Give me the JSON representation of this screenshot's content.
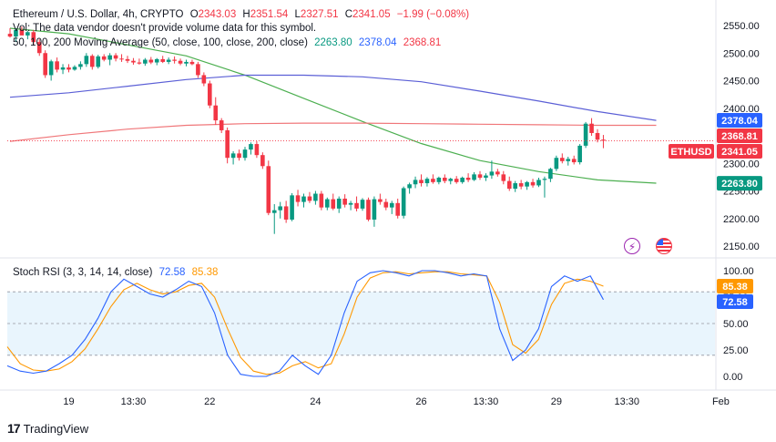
{
  "header": {
    "symbol_title": "Ethereum / U.S. Dollar, 4h, CRYPTO",
    "ohlc": [
      {
        "prefix": "O",
        "value": "2343.03"
      },
      {
        "prefix": "H",
        "value": "2351.54"
      },
      {
        "prefix": "L",
        "value": "2327.51"
      },
      {
        "prefix": "C",
        "value": "2341.05"
      }
    ],
    "change": "−1.99 (−0.08%)",
    "volume_note": "Vol: The data vendor doesn't provide volume data for this symbol.",
    "ma_label": "50, 100, 200 Moving Average (50, close, 100, close, 200, close)",
    "ma_values": [
      "2263.80",
      "2378.04",
      "2368.81"
    ]
  },
  "stoch_label": "Stoch RSI (3, 3, 14, 14, close)",
  "stoch_values": [
    "72.58",
    "85.38"
  ],
  "price_badges": [
    {
      "text": "2378.04",
      "value": 2378.04,
      "color": "#2962ff"
    },
    {
      "text": "2368.81",
      "value": 2368.81,
      "color": "#f23645"
    },
    {
      "text": "2341.05",
      "value": 2341.05,
      "color": "#f23645"
    },
    {
      "text": "2263.80",
      "value": 2263.8,
      "color": "#089981"
    }
  ],
  "symbol_badge": "ETHUSD",
  "stoch_badges": [
    {
      "text": "85.38",
      "value": 85.38,
      "color": "#ff9800"
    },
    {
      "text": "72.58",
      "value": 72.58,
      "color": "#2962ff"
    }
  ],
  "brand": "TradingView",
  "colors": {
    "up": "#089981",
    "down": "#f23645",
    "ma50": "#4caf50",
    "ma100": "#5b5fd6",
    "ma200": "#f0777a",
    "k_line": "#2962ff",
    "d_line": "#ff9800",
    "stoch_band": "#e3f2fd"
  },
  "chart_data": [
    {
      "type": "candlestick",
      "title": "Ethereum / U.S. Dollar, 4h, CRYPTO",
      "y_ticks": [
        2550,
        2500,
        2450,
        2400,
        2350,
        2300,
        2250,
        2200,
        2150
      ],
      "y_tick_labels": [
        "2550.00",
        "2500.00",
        "2450.00",
        "2400.00",
        "2350.00",
        "2300.00",
        "2250.00",
        "2200.00",
        "2150.00"
      ],
      "x_tick_labels": [
        "19",
        "13:30",
        "22",
        "24",
        "26",
        "13:30",
        "29",
        "13:30",
        "Feb"
      ],
      "x_tick_index": [
        10,
        21,
        34,
        52,
        70,
        81,
        93,
        105,
        121
      ],
      "ylim": [
        2150,
        2550
      ],
      "candles": [
        {
          "o": 2535,
          "h": 2545,
          "l": 2528,
          "c": 2530
        },
        {
          "o": 2530,
          "h": 2545,
          "l": 2520,
          "c": 2542
        },
        {
          "o": 2542,
          "h": 2548,
          "l": 2535,
          "c": 2532
        },
        {
          "o": 2532,
          "h": 2540,
          "l": 2525,
          "c": 2538
        },
        {
          "o": 2538,
          "h": 2542,
          "l": 2515,
          "c": 2520
        },
        {
          "o": 2520,
          "h": 2525,
          "l": 2495,
          "c": 2500
        },
        {
          "o": 2500,
          "h": 2505,
          "l": 2455,
          "c": 2460
        },
        {
          "o": 2460,
          "h": 2488,
          "l": 2450,
          "c": 2485
        },
        {
          "o": 2485,
          "h": 2492,
          "l": 2465,
          "c": 2470
        },
        {
          "o": 2470,
          "h": 2480,
          "l": 2462,
          "c": 2474
        },
        {
          "o": 2474,
          "h": 2480,
          "l": 2465,
          "c": 2470
        },
        {
          "o": 2470,
          "h": 2478,
          "l": 2468,
          "c": 2475
        },
        {
          "o": 2475,
          "h": 2485,
          "l": 2470,
          "c": 2480
        },
        {
          "o": 2480,
          "h": 2500,
          "l": 2475,
          "c": 2495
        },
        {
          "o": 2495,
          "h": 2498,
          "l": 2470,
          "c": 2475
        },
        {
          "o": 2475,
          "h": 2497,
          "l": 2472,
          "c": 2494
        },
        {
          "o": 2494,
          "h": 2498,
          "l": 2485,
          "c": 2488
        },
        {
          "o": 2488,
          "h": 2500,
          "l": 2478,
          "c": 2496
        },
        {
          "o": 2496,
          "h": 2500,
          "l": 2485,
          "c": 2490
        },
        {
          "o": 2490,
          "h": 2498,
          "l": 2484,
          "c": 2489
        },
        {
          "o": 2489,
          "h": 2495,
          "l": 2482,
          "c": 2486
        },
        {
          "o": 2486,
          "h": 2491,
          "l": 2479,
          "c": 2483
        },
        {
          "o": 2483,
          "h": 2490,
          "l": 2479,
          "c": 2481
        },
        {
          "o": 2481,
          "h": 2491,
          "l": 2477,
          "c": 2488
        },
        {
          "o": 2488,
          "h": 2493,
          "l": 2480,
          "c": 2483
        },
        {
          "o": 2483,
          "h": 2491,
          "l": 2478,
          "c": 2489
        },
        {
          "o": 2489,
          "h": 2495,
          "l": 2482,
          "c": 2484
        },
        {
          "o": 2484,
          "h": 2492,
          "l": 2480,
          "c": 2488
        },
        {
          "o": 2488,
          "h": 2494,
          "l": 2481,
          "c": 2486
        },
        {
          "o": 2486,
          "h": 2490,
          "l": 2478,
          "c": 2481
        },
        {
          "o": 2481,
          "h": 2488,
          "l": 2476,
          "c": 2484
        },
        {
          "o": 2484,
          "h": 2488,
          "l": 2478,
          "c": 2480
        },
        {
          "o": 2480,
          "h": 2484,
          "l": 2455,
          "c": 2460
        },
        {
          "o": 2460,
          "h": 2465,
          "l": 2440,
          "c": 2445
        },
        {
          "o": 2445,
          "h": 2450,
          "l": 2400,
          "c": 2405
        },
        {
          "o": 2405,
          "h": 2420,
          "l": 2370,
          "c": 2378
        },
        {
          "o": 2378,
          "h": 2382,
          "l": 2355,
          "c": 2360
        },
        {
          "o": 2360,
          "h": 2365,
          "l": 2300,
          "c": 2310
        },
        {
          "o": 2310,
          "h": 2322,
          "l": 2298,
          "c": 2318
        },
        {
          "o": 2318,
          "h": 2325,
          "l": 2305,
          "c": 2310
        },
        {
          "o": 2310,
          "h": 2330,
          "l": 2305,
          "c": 2325
        },
        {
          "o": 2325,
          "h": 2338,
          "l": 2316,
          "c": 2335
        },
        {
          "o": 2335,
          "h": 2340,
          "l": 2310,
          "c": 2315
        },
        {
          "o": 2315,
          "h": 2320,
          "l": 2290,
          "c": 2295
        },
        {
          "o": 2295,
          "h": 2305,
          "l": 2206,
          "c": 2210
        },
        {
          "o": 2210,
          "h": 2226,
          "l": 2172,
          "c": 2215
        },
        {
          "o": 2215,
          "h": 2230,
          "l": 2200,
          "c": 2222
        },
        {
          "o": 2222,
          "h": 2232,
          "l": 2192,
          "c": 2198
        },
        {
          "o": 2198,
          "h": 2246,
          "l": 2195,
          "c": 2242
        },
        {
          "o": 2242,
          "h": 2252,
          "l": 2222,
          "c": 2230
        },
        {
          "o": 2230,
          "h": 2245,
          "l": 2220,
          "c": 2240
        },
        {
          "o": 2240,
          "h": 2248,
          "l": 2228,
          "c": 2232
        },
        {
          "o": 2232,
          "h": 2250,
          "l": 2225,
          "c": 2245
        },
        {
          "o": 2245,
          "h": 2250,
          "l": 2215,
          "c": 2220
        },
        {
          "o": 2220,
          "h": 2238,
          "l": 2215,
          "c": 2235
        },
        {
          "o": 2235,
          "h": 2245,
          "l": 2215,
          "c": 2218
        },
        {
          "o": 2218,
          "h": 2240,
          "l": 2210,
          "c": 2236
        },
        {
          "o": 2236,
          "h": 2244,
          "l": 2220,
          "c": 2225
        },
        {
          "o": 2225,
          "h": 2232,
          "l": 2215,
          "c": 2228
        },
        {
          "o": 2228,
          "h": 2240,
          "l": 2213,
          "c": 2218
        },
        {
          "o": 2218,
          "h": 2237,
          "l": 2214,
          "c": 2234
        },
        {
          "o": 2234,
          "h": 2238,
          "l": 2195,
          "c": 2198
        },
        {
          "o": 2198,
          "h": 2240,
          "l": 2185,
          "c": 2235
        },
        {
          "o": 2235,
          "h": 2245,
          "l": 2225,
          "c": 2230
        },
        {
          "o": 2230,
          "h": 2236,
          "l": 2215,
          "c": 2220
        },
        {
          "o": 2220,
          "h": 2232,
          "l": 2208,
          "c": 2228
        },
        {
          "o": 2228,
          "h": 2236,
          "l": 2200,
          "c": 2205
        },
        {
          "o": 2205,
          "h": 2258,
          "l": 2200,
          "c": 2255
        },
        {
          "o": 2255,
          "h": 2265,
          "l": 2245,
          "c": 2262
        },
        {
          "o": 2262,
          "h": 2276,
          "l": 2255,
          "c": 2270
        },
        {
          "o": 2270,
          "h": 2280,
          "l": 2258,
          "c": 2264
        },
        {
          "o": 2264,
          "h": 2275,
          "l": 2258,
          "c": 2272
        },
        {
          "o": 2272,
          "h": 2280,
          "l": 2263,
          "c": 2266
        },
        {
          "o": 2266,
          "h": 2276,
          "l": 2262,
          "c": 2274
        },
        {
          "o": 2274,
          "h": 2280,
          "l": 2264,
          "c": 2268
        },
        {
          "o": 2268,
          "h": 2274,
          "l": 2262,
          "c": 2272
        },
        {
          "o": 2272,
          "h": 2277,
          "l": 2263,
          "c": 2266
        },
        {
          "o": 2266,
          "h": 2276,
          "l": 2263,
          "c": 2274
        },
        {
          "o": 2274,
          "h": 2282,
          "l": 2266,
          "c": 2270
        },
        {
          "o": 2270,
          "h": 2284,
          "l": 2268,
          "c": 2280
        },
        {
          "o": 2280,
          "h": 2286,
          "l": 2270,
          "c": 2274
        },
        {
          "o": 2274,
          "h": 2282,
          "l": 2268,
          "c": 2278
        },
        {
          "o": 2278,
          "h": 2305,
          "l": 2272,
          "c": 2285
        },
        {
          "o": 2285,
          "h": 2290,
          "l": 2276,
          "c": 2280
        },
        {
          "o": 2280,
          "h": 2286,
          "l": 2262,
          "c": 2268
        },
        {
          "o": 2268,
          "h": 2276,
          "l": 2250,
          "c": 2254
        },
        {
          "o": 2254,
          "h": 2268,
          "l": 2248,
          "c": 2264
        },
        {
          "o": 2264,
          "h": 2270,
          "l": 2253,
          "c": 2258
        },
        {
          "o": 2258,
          "h": 2268,
          "l": 2252,
          "c": 2266
        },
        {
          "o": 2266,
          "h": 2272,
          "l": 2256,
          "c": 2260
        },
        {
          "o": 2260,
          "h": 2274,
          "l": 2257,
          "c": 2270
        },
        {
          "o": 2270,
          "h": 2276,
          "l": 2238,
          "c": 2272
        },
        {
          "o": 2272,
          "h": 2292,
          "l": 2266,
          "c": 2290
        },
        {
          "o": 2290,
          "h": 2314,
          "l": 2286,
          "c": 2310
        },
        {
          "o": 2310,
          "h": 2318,
          "l": 2300,
          "c": 2304
        },
        {
          "o": 2304,
          "h": 2312,
          "l": 2296,
          "c": 2308
        },
        {
          "o": 2308,
          "h": 2314,
          "l": 2298,
          "c": 2302
        },
        {
          "o": 2302,
          "h": 2335,
          "l": 2298,
          "c": 2332
        },
        {
          "o": 2332,
          "h": 2375,
          "l": 2328,
          "c": 2372
        },
        {
          "o": 2372,
          "h": 2382,
          "l": 2350,
          "c": 2355
        },
        {
          "o": 2355,
          "h": 2362,
          "l": 2338,
          "c": 2343
        },
        {
          "o": 2343.03,
          "h": 2351.54,
          "l": 2327.51,
          "c": 2341.05
        }
      ],
      "moving_averages": [
        {
          "name": "50",
          "color": "#4caf50",
          "x_index": [
            0,
            10,
            20,
            30,
            40,
            50,
            60,
            70,
            80,
            90,
            100,
            110
          ],
          "values": [
            2545,
            2535,
            2515,
            2495,
            2460,
            2418,
            2376,
            2336,
            2305,
            2285,
            2270,
            2264
          ]
        },
        {
          "name": "100",
          "color": "#5b5fd6",
          "x_index": [
            0,
            10,
            20,
            30,
            40,
            50,
            60,
            70,
            80,
            90,
            100,
            110
          ],
          "values": [
            2420,
            2428,
            2440,
            2452,
            2460,
            2460,
            2457,
            2448,
            2431,
            2413,
            2394,
            2378
          ]
        },
        {
          "name": "200",
          "color": "#f0777a",
          "x_index": [
            0,
            10,
            20,
            30,
            40,
            50,
            60,
            70,
            80,
            90,
            100,
            110
          ],
          "values": [
            2340,
            2352,
            2362,
            2369,
            2372,
            2373,
            2373,
            2372,
            2371,
            2370,
            2369,
            2369
          ]
        }
      ]
    },
    {
      "type": "line",
      "title": "Stoch RSI (3, 3, 14, 14, close)",
      "y_ticks": [
        100,
        75,
        50,
        25,
        0
      ],
      "y_tick_labels": [
        "100.00",
        "75.00",
        "50.00",
        "25.00",
        "0.00"
      ],
      "band": [
        20,
        80
      ],
      "ylim": [
        -5,
        105
      ],
      "series": [
        {
          "name": "K",
          "color": "#2962ff",
          "values": [
            10,
            5,
            3,
            5,
            12,
            20,
            35,
            55,
            80,
            92,
            85,
            78,
            75,
            82,
            90,
            85,
            60,
            20,
            2,
            0,
            0,
            5,
            20,
            10,
            2,
            20,
            60,
            90,
            98,
            100,
            98,
            95,
            100,
            100,
            98,
            95,
            97,
            95,
            45,
            15,
            25,
            45,
            85,
            95,
            90,
            95,
            72.58
          ]
        },
        {
          "name": "D",
          "color": "#ff9800",
          "values": [
            28,
            12,
            6,
            5,
            7,
            14,
            26,
            45,
            66,
            82,
            88,
            82,
            78,
            80,
            86,
            88,
            75,
            45,
            18,
            5,
            2,
            3,
            10,
            14,
            8,
            12,
            40,
            75,
            93,
            98,
            99,
            97,
            98,
            99,
            99,
            97,
            96,
            95,
            70,
            30,
            22,
            35,
            68,
            88,
            92,
            90,
            85.38
          ]
        }
      ]
    }
  ]
}
